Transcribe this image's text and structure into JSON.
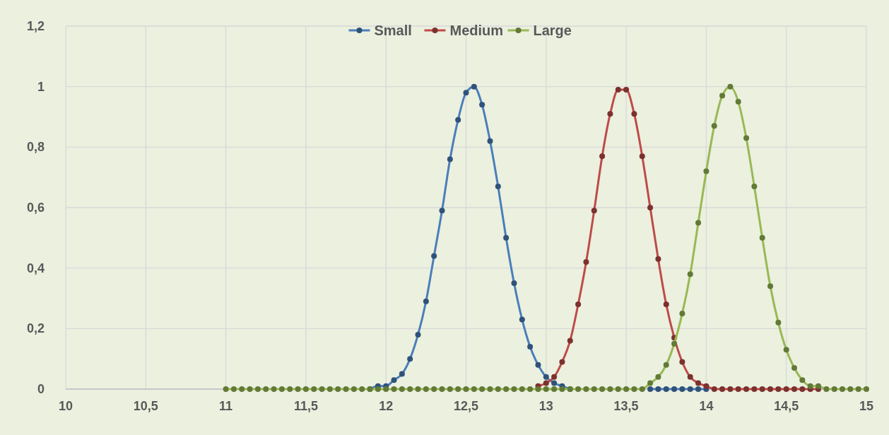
{
  "chart_data": {
    "type": "line",
    "x": [
      11,
      11.05,
      11.1,
      11.15,
      11.2,
      11.25,
      11.3,
      11.35,
      11.4,
      11.45,
      11.5,
      11.55,
      11.6,
      11.65,
      11.7,
      11.75,
      11.8,
      11.85,
      11.9,
      11.95,
      12,
      12.05,
      12.1,
      12.15,
      12.2,
      12.25,
      12.3,
      12.35,
      12.4,
      12.45,
      12.5,
      12.55,
      12.6,
      12.65,
      12.7,
      12.75,
      12.8,
      12.85,
      12.9,
      12.95,
      13,
      13.05,
      13.1,
      13.15,
      13.2,
      13.25,
      13.3,
      13.35,
      13.4,
      13.45,
      13.5,
      13.55,
      13.6,
      13.65,
      13.7,
      13.75,
      13.8,
      13.85,
      13.9,
      13.95,
      14,
      14.05,
      14.1,
      14.15,
      14.2,
      14.25,
      14.3,
      14.35,
      14.4,
      14.45,
      14.5,
      14.55,
      14.6,
      14.65,
      14.7,
      14.75,
      14.8,
      14.85,
      14.9,
      14.95,
      15
    ],
    "series": [
      {
        "name": "Small",
        "color": "#4a7ebb",
        "values": [
          null,
          null,
          null,
          null,
          null,
          null,
          null,
          null,
          null,
          null,
          null,
          null,
          null,
          null,
          null,
          null,
          null,
          null,
          0,
          0.01,
          0.01,
          0.03,
          0.05,
          0.1,
          0.18,
          0.29,
          0.44,
          0.59,
          0.76,
          0.89,
          0.98,
          1,
          0.94,
          0.82,
          0.67,
          0.5,
          0.35,
          0.23,
          0.14,
          0.08,
          0.04,
          0.02,
          0.01,
          0,
          null,
          null,
          null,
          null,
          null,
          null,
          null,
          null,
          null,
          0,
          0,
          0,
          0,
          0,
          0,
          0,
          0,
          null,
          null,
          null,
          null,
          null,
          null,
          null,
          null,
          null,
          null,
          null,
          null,
          null,
          null,
          null,
          null,
          null,
          null,
          null,
          null
        ]
      },
      {
        "name": "Medium",
        "color": "#be4b48",
        "values": [
          null,
          null,
          null,
          null,
          null,
          null,
          null,
          null,
          null,
          null,
          null,
          null,
          null,
          null,
          null,
          null,
          null,
          null,
          null,
          null,
          null,
          null,
          null,
          null,
          null,
          null,
          null,
          null,
          null,
          null,
          null,
          null,
          null,
          null,
          null,
          null,
          null,
          null,
          null,
          0.01,
          0.02,
          0.04,
          0.09,
          0.16,
          0.28,
          0.42,
          0.59,
          0.77,
          0.91,
          0.99,
          0.99,
          0.91,
          0.77,
          0.6,
          0.43,
          0.28,
          0.17,
          0.09,
          0.04,
          0.02,
          0.01,
          0,
          0,
          0,
          0,
          0,
          0,
          0,
          0,
          0,
          0,
          0,
          0,
          0,
          0,
          null,
          null,
          null,
          null,
          null,
          null
        ]
      },
      {
        "name": "Large",
        "color": "#98b954",
        "values": [
          0,
          0,
          0,
          0,
          0,
          0,
          0,
          0,
          0,
          0,
          0,
          0,
          0,
          0,
          0,
          0,
          0,
          0,
          0,
          0,
          0,
          0,
          0,
          0,
          0,
          0,
          0,
          0,
          0,
          0,
          0,
          0,
          0,
          0,
          0,
          0,
          0,
          0,
          0,
          0,
          0,
          0,
          0,
          0,
          0,
          0,
          0,
          0,
          0,
          0,
          0,
          0,
          0,
          0.02,
          0.04,
          0.08,
          0.15,
          0.25,
          0.38,
          0.55,
          0.72,
          0.87,
          0.97,
          1,
          0.95,
          0.83,
          0.67,
          0.5,
          0.34,
          0.22,
          0.13,
          0.07,
          0.03,
          0.01,
          0.01,
          0,
          0,
          0,
          0,
          0,
          0
        ]
      }
    ],
    "xlim": [
      10,
      15
    ],
    "xticks": [
      10,
      {
        "value": 10.5,
        "label": "10,5"
      },
      11,
      {
        "value": 11.5,
        "label": "11,5"
      },
      12,
      {
        "value": 12.5,
        "label": "12,5"
      },
      13,
      {
        "value": 13.5,
        "label": "13,5"
      },
      14,
      {
        "value": 14.5,
        "label": "14,5"
      },
      15
    ],
    "ylim": [
      0,
      1.2
    ],
    "yticks": [
      0,
      {
        "value": 0.2,
        "label": "0,2"
      },
      {
        "value": 0.4,
        "label": "0,4"
      },
      {
        "value": 0.6,
        "label": "0,6"
      },
      {
        "value": 0.8,
        "label": "0,8"
      },
      1,
      {
        "value": 1.2,
        "label": "1,2"
      }
    ],
    "grid": true,
    "legend": "top",
    "marker": "circle",
    "line_style": "solid"
  }
}
